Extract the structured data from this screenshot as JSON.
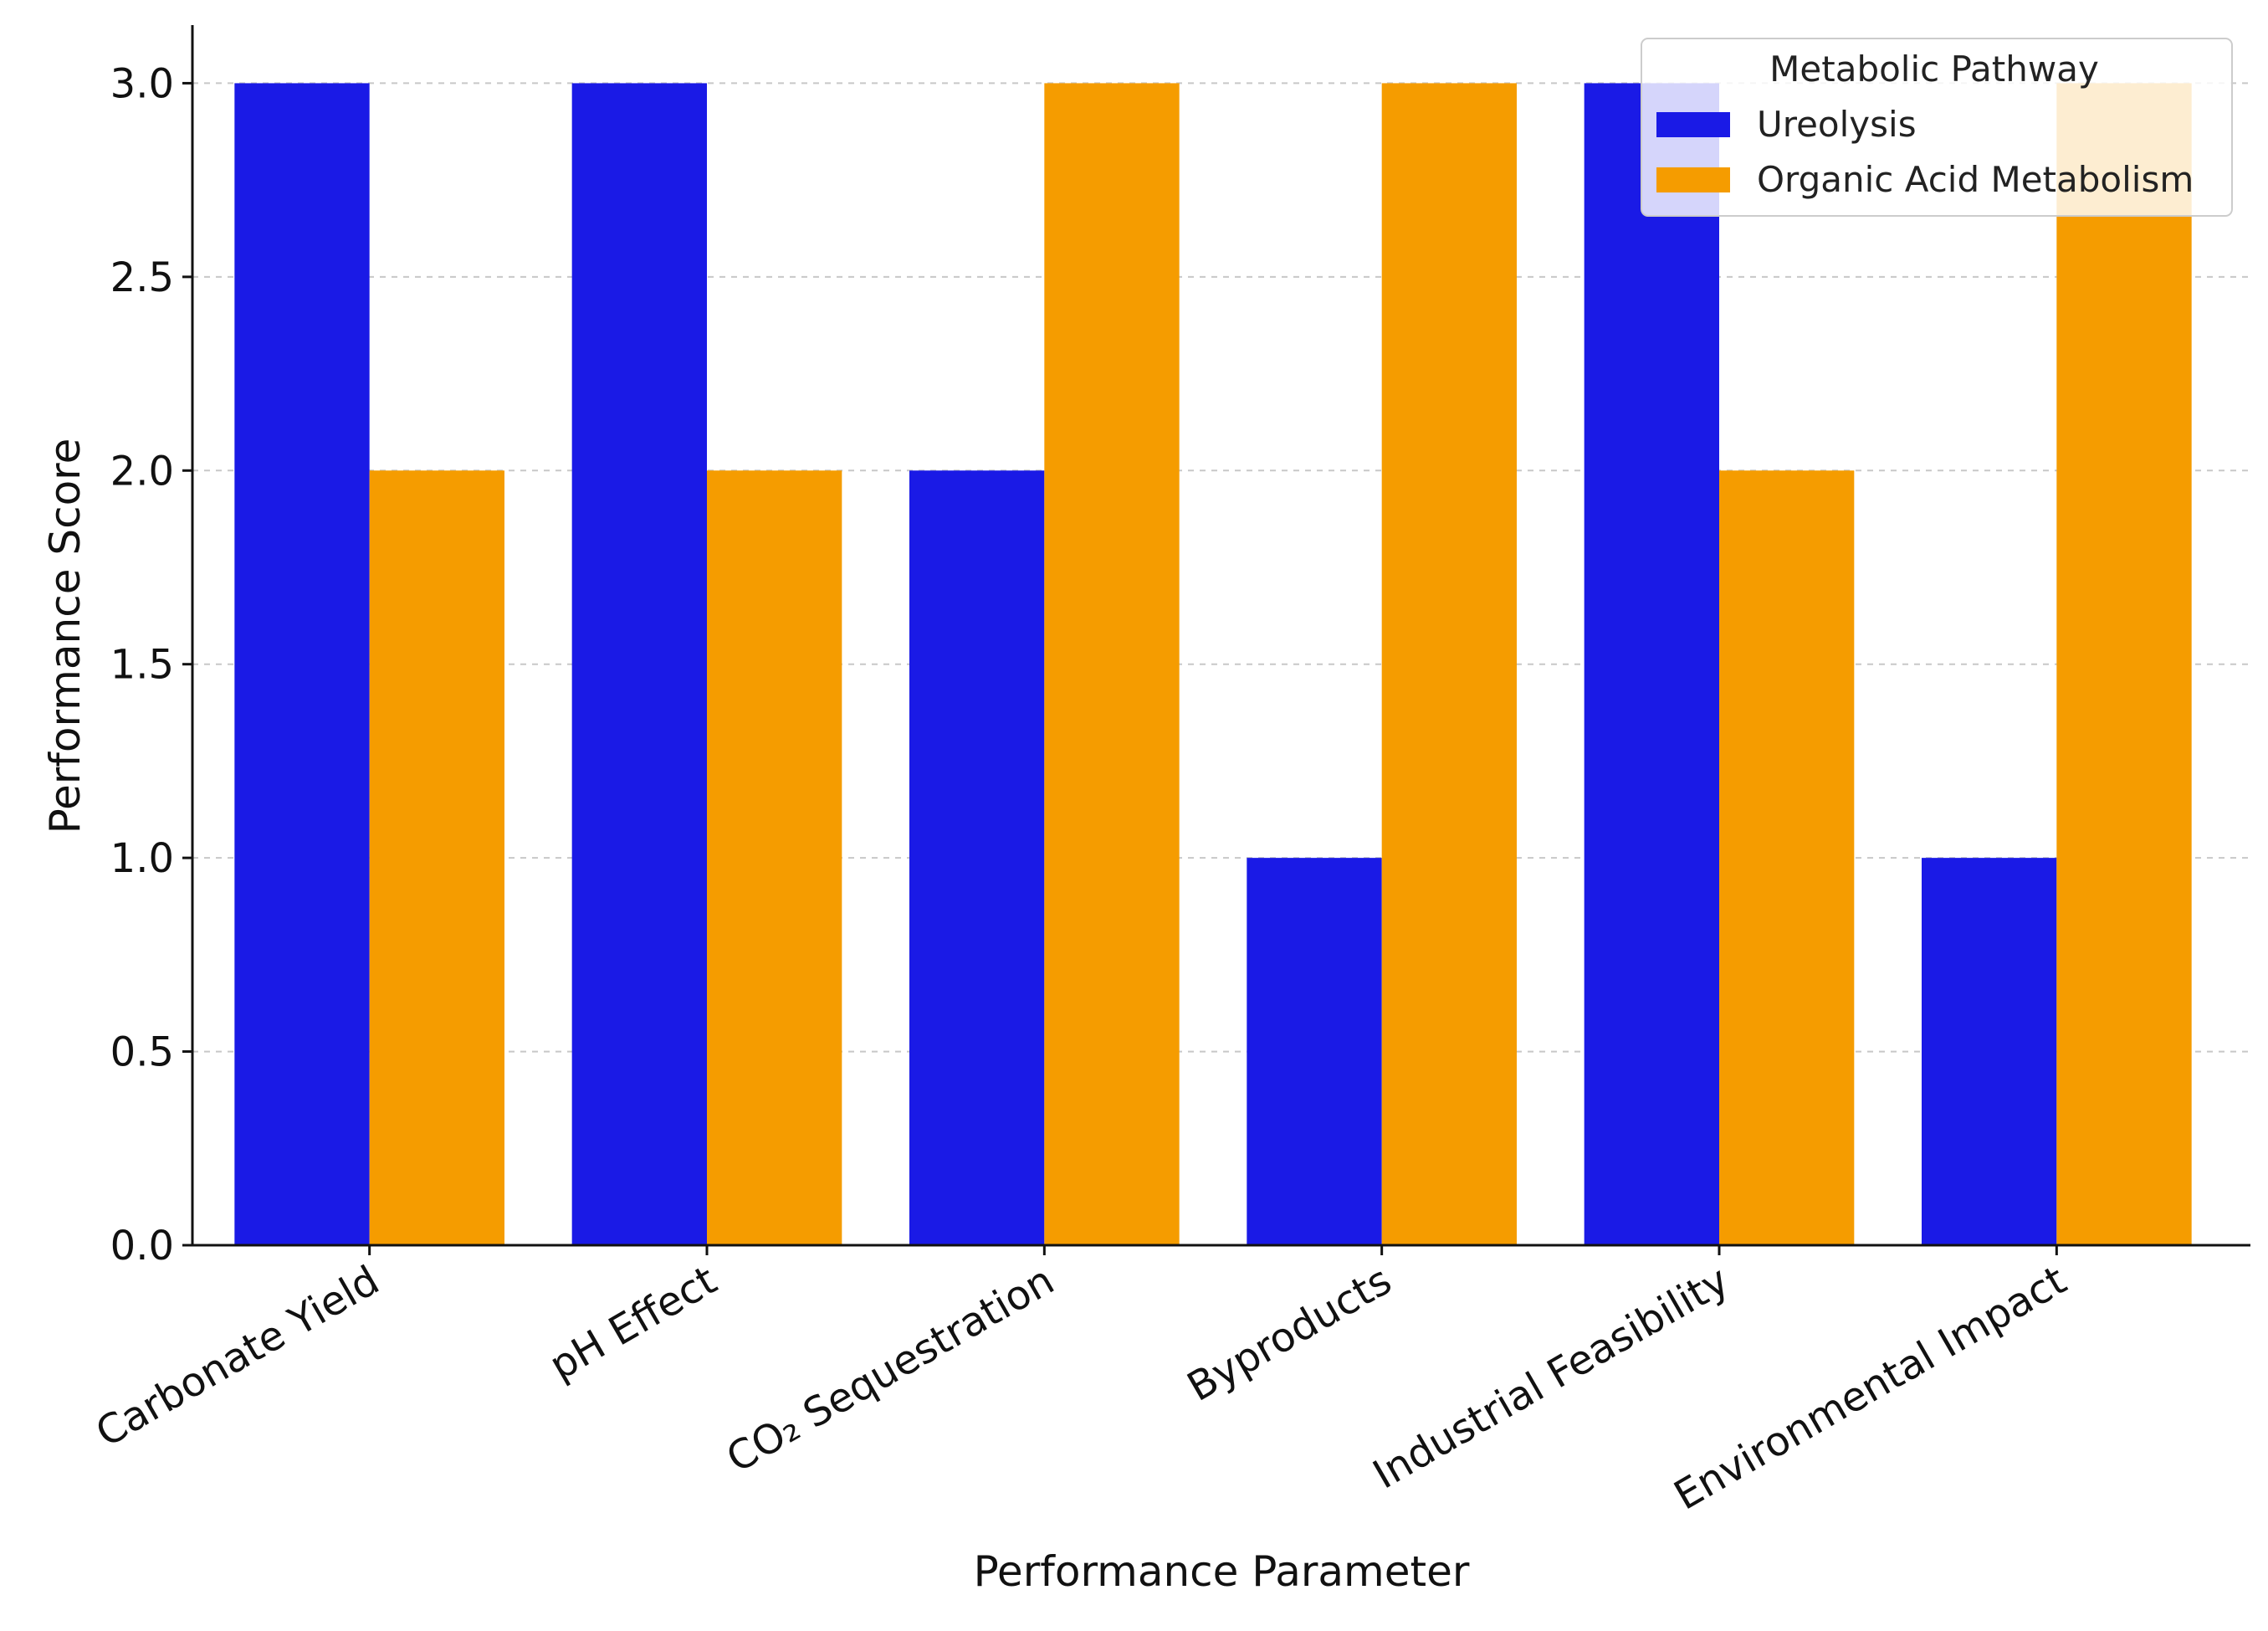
{
  "chart_data": {
    "type": "bar",
    "title": "",
    "xlabel": "Performance Parameter",
    "ylabel": "Performance Score",
    "ylim": [
      0,
      3.15
    ],
    "yticks": [
      0.0,
      0.5,
      1.0,
      1.5,
      2.0,
      2.5,
      3.0
    ],
    "ytick_labels": [
      "0.0",
      "0.5",
      "1.0",
      "1.5",
      "2.0",
      "2.5",
      "3.0"
    ],
    "grid": true,
    "categories": [
      "Carbonate Yield",
      "pH Effect",
      "CO₂ Sequestration",
      "Byproducts",
      "Industrial Feasibility",
      "Environmental Impact"
    ],
    "series": [
      {
        "name": "Ureolysis",
        "color": "#1a1ae6",
        "values": [
          3,
          3,
          2,
          1,
          3,
          1
        ]
      },
      {
        "name": "Organic Acid Metabolism",
        "color": "#f59c00",
        "values": [
          2,
          2,
          3,
          3,
          2,
          3
        ]
      }
    ],
    "legend": {
      "title": "Metabolic Pathway",
      "position": "top-right"
    }
  }
}
